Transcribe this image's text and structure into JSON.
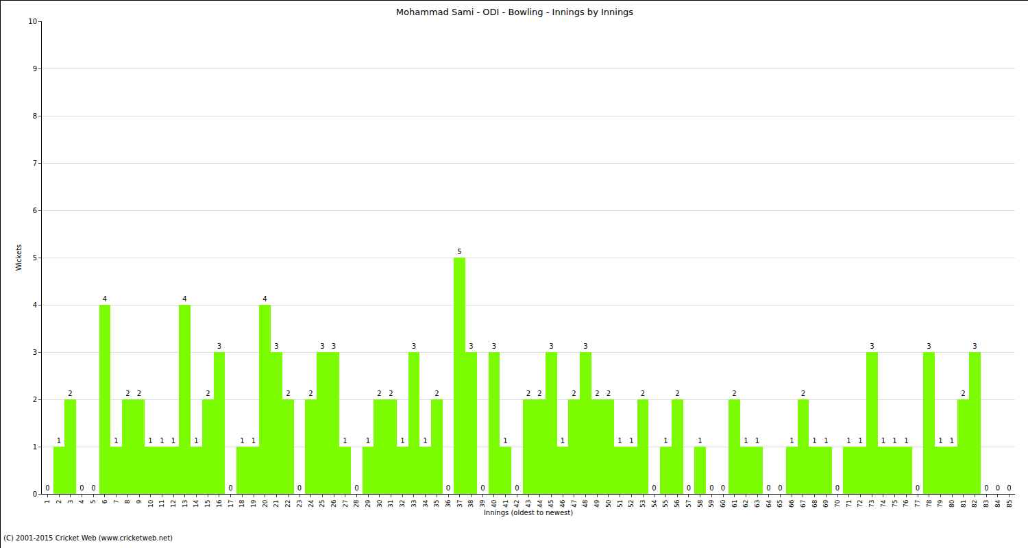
{
  "chart_data": {
    "type": "bar",
    "title": "Mohammad Sami - ODI - Bowling - Innings by Innings",
    "x_label": "Innings (oldest to newest)",
    "y_label": "Wickets",
    "categories": [
      "1",
      "2",
      "3",
      "4",
      "5",
      "6",
      "7",
      "8",
      "9",
      "10",
      "11",
      "12",
      "13",
      "14",
      "15",
      "16",
      "17",
      "18",
      "19",
      "20",
      "21",
      "22",
      "23",
      "24",
      "25",
      "26",
      "27",
      "28",
      "29",
      "30",
      "31",
      "32",
      "33",
      "34",
      "35",
      "36",
      "37",
      "38",
      "39",
      "40",
      "41",
      "42",
      "43",
      "44",
      "45",
      "46",
      "47",
      "48",
      "49",
      "50",
      "51",
      "52",
      "53",
      "54",
      "55",
      "56",
      "57",
      "58",
      "59",
      "60",
      "61",
      "62",
      "63",
      "64",
      "65",
      "66",
      "67",
      "68",
      "69",
      "70",
      "71",
      "72",
      "73",
      "74",
      "75",
      "76",
      "77",
      "78",
      "79",
      "80",
      "81",
      "82",
      "83",
      "84",
      "85"
    ],
    "values": [
      0,
      1,
      2,
      0,
      0,
      4,
      1,
      2,
      2,
      1,
      1,
      1,
      4,
      1,
      2,
      3,
      0,
      1,
      1,
      4,
      3,
      2,
      0,
      2,
      3,
      3,
      1,
      0,
      1,
      2,
      2,
      1,
      3,
      1,
      2,
      0,
      5,
      3,
      0,
      3,
      1,
      0,
      2,
      2,
      3,
      1,
      2,
      3,
      2,
      2,
      1,
      1,
      2,
      0,
      1,
      2,
      0,
      1,
      0,
      0,
      2,
      1,
      1,
      0,
      0,
      1,
      2,
      1,
      1,
      0,
      1,
      1,
      3,
      1,
      1,
      1,
      0,
      3,
      1,
      1,
      2,
      3,
      0,
      0,
      0
    ],
    "color": "#7cfc00",
    "ylim": [
      0,
      10
    ],
    "yticks": [
      0,
      1,
      2,
      3,
      4,
      5,
      6,
      7,
      8,
      9,
      10
    ],
    "grid": true,
    "data_labels": true,
    "annotations": [
      {
        "text": "(C) 2001-2015 Cricket Web (www.cricketweb.net)"
      }
    ]
  }
}
